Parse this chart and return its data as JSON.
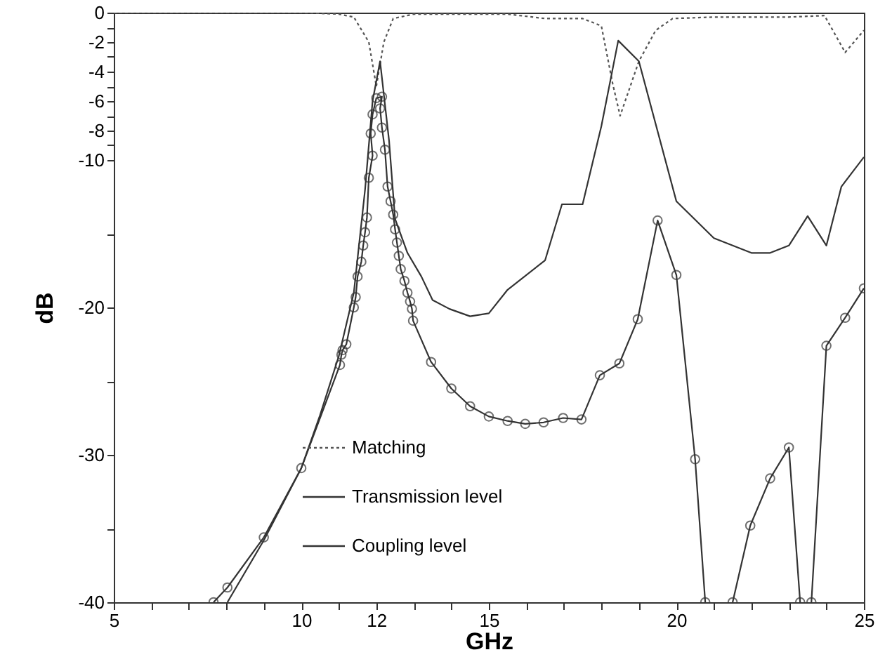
{
  "chart_data": {
    "type": "line",
    "xlabel": "GHz",
    "ylabel": "dB",
    "xlim": [
      5,
      25
    ],
    "ylim": [
      -40,
      0
    ],
    "xticks": [
      5,
      {
        "value": 6,
        "label": null
      },
      {
        "value": 7,
        "label": null
      },
      {
        "value": 8,
        "label": null
      },
      {
        "value": 9,
        "label": null
      },
      10,
      {
        "value": 11,
        "label": null
      },
      12,
      {
        "value": 13,
        "label": null
      },
      {
        "value": 14,
        "label": null
      },
      15,
      {
        "value": 16,
        "label": null
      },
      {
        "value": 17,
        "label": null
      },
      {
        "value": 18,
        "label": null
      },
      {
        "value": 19,
        "label": null
      },
      20,
      {
        "value": 21,
        "label": null
      },
      {
        "value": 22,
        "label": null
      },
      {
        "value": 23,
        "label": null
      },
      {
        "value": 24,
        "label": null
      },
      25
    ],
    "yticks": [
      0,
      {
        "value": -1,
        "label": null
      },
      -2,
      {
        "value": -3,
        "label": null
      },
      -4,
      {
        "value": -5,
        "label": null
      },
      -6,
      {
        "value": -7,
        "label": null
      },
      -8,
      {
        "value": -9,
        "label": null
      },
      -10,
      {
        "value": -15,
        "label": null
      },
      -20,
      {
        "value": -25,
        "label": null
      },
      -30,
      {
        "value": -35,
        "label": null
      },
      -40
    ],
    "grid": false,
    "legend": "bottom",
    "series": [
      {
        "name": "Matching",
        "color": "#555555",
        "line_style": "dotted",
        "marker": "none",
        "x": [
          5,
          10,
          11,
          11.4,
          11.8,
          12,
          12.2,
          12.45,
          13,
          14,
          15.5,
          16.5,
          17.5,
          18,
          18.3,
          18.5,
          19,
          19.45,
          19.9,
          21,
          23,
          23.95,
          24.5,
          25
        ],
        "values": [
          0,
          0,
          -0.1,
          -0.3,
          -2,
          -5,
          -2,
          -0.4,
          -0.1,
          -0.1,
          -0.1,
          -0.4,
          -0.4,
          -0.9,
          -4.8,
          -7,
          -3.3,
          -1.2,
          -0.4,
          -0.3,
          -0.3,
          -0.2,
          -2.7,
          -1.2
        ]
      },
      {
        "name": "Transmission level",
        "color": "#333333",
        "line_style": "solid",
        "marker": "none",
        "x": [
          8.03,
          9,
          10,
          10.5,
          11,
          11.4,
          11.7,
          11.9,
          12.1,
          12.34,
          12.5,
          12.83,
          13.2,
          13.5,
          13.95,
          14.5,
          15,
          15.5,
          16.5,
          16.95,
          17.5,
          18,
          18.45,
          19,
          20,
          21,
          22,
          22.5,
          23,
          23.5,
          24,
          24.4,
          25
        ],
        "values": [
          -40,
          -35.8,
          -30.9,
          -27.3,
          -23.3,
          -19,
          -12,
          -6,
          -3.3,
          -8.7,
          -14,
          -16.3,
          -17.9,
          -19.5,
          -20.1,
          -20.6,
          -20.4,
          -18.8,
          -16.8,
          -13,
          -13,
          -7.7,
          -1.9,
          -3.3,
          -12.8,
          -15.3,
          -16.3,
          -16.3,
          -15.8,
          -13.8,
          -15.8,
          -11.8,
          -9.8
        ]
      },
      {
        "name": "Coupling level",
        "color": "#333333",
        "line_style": "solid",
        "marker": "circle",
        "x": [
          7.66,
          8.03,
          9,
          10,
          11.03,
          11.07,
          11.1,
          11.2,
          11.4,
          11.45,
          11.5,
          11.6,
          11.65,
          11.7,
          11.75,
          11.8,
          11.9,
          11.85,
          11.9,
          12,
          12.15,
          12.1,
          12.15,
          12.23,
          12.3,
          12.38,
          12.45,
          12.5,
          12.55,
          12.6,
          12.65,
          12.75,
          12.83,
          12.9,
          12.95,
          12.98,
          13.46,
          14,
          14.5,
          15,
          15.5,
          15.97,
          16.46,
          16.98,
          17.47,
          17.96,
          18.48,
          18.97,
          19.5,
          20,
          20.5,
          20.77,
          null,
          21.5,
          21.97,
          22.5,
          23,
          23.3,
          null,
          23.6,
          24,
          24.5,
          25
        ],
        "values": [
          -40,
          -39,
          -35.6,
          -30.9,
          -23.9,
          -23.2,
          -22.9,
          -22.5,
          -20,
          -19.3,
          -17.9,
          -16.9,
          -15.8,
          -14.9,
          -13.9,
          -11.2,
          -9.7,
          -8.2,
          -6.9,
          -5.8,
          -5.7,
          -6.5,
          -7.8,
          -9.3,
          -11.8,
          -12.8,
          -13.7,
          -14.7,
          -15.6,
          -16.5,
          -17.4,
          -18.2,
          -19,
          -19.6,
          -20.1,
          -20.9,
          -23.7,
          -25.5,
          -26.7,
          -27.4,
          -27.7,
          -27.9,
          -27.8,
          -27.5,
          -27.6,
          -24.6,
          -23.8,
          -20.8,
          -14.1,
          -17.8,
          -30.3,
          -40,
          null,
          -40,
          -34.8,
          -31.6,
          -29.5,
          -40,
          null,
          -40,
          -22.6,
          -20.7,
          -18.7
        ]
      }
    ]
  }
}
